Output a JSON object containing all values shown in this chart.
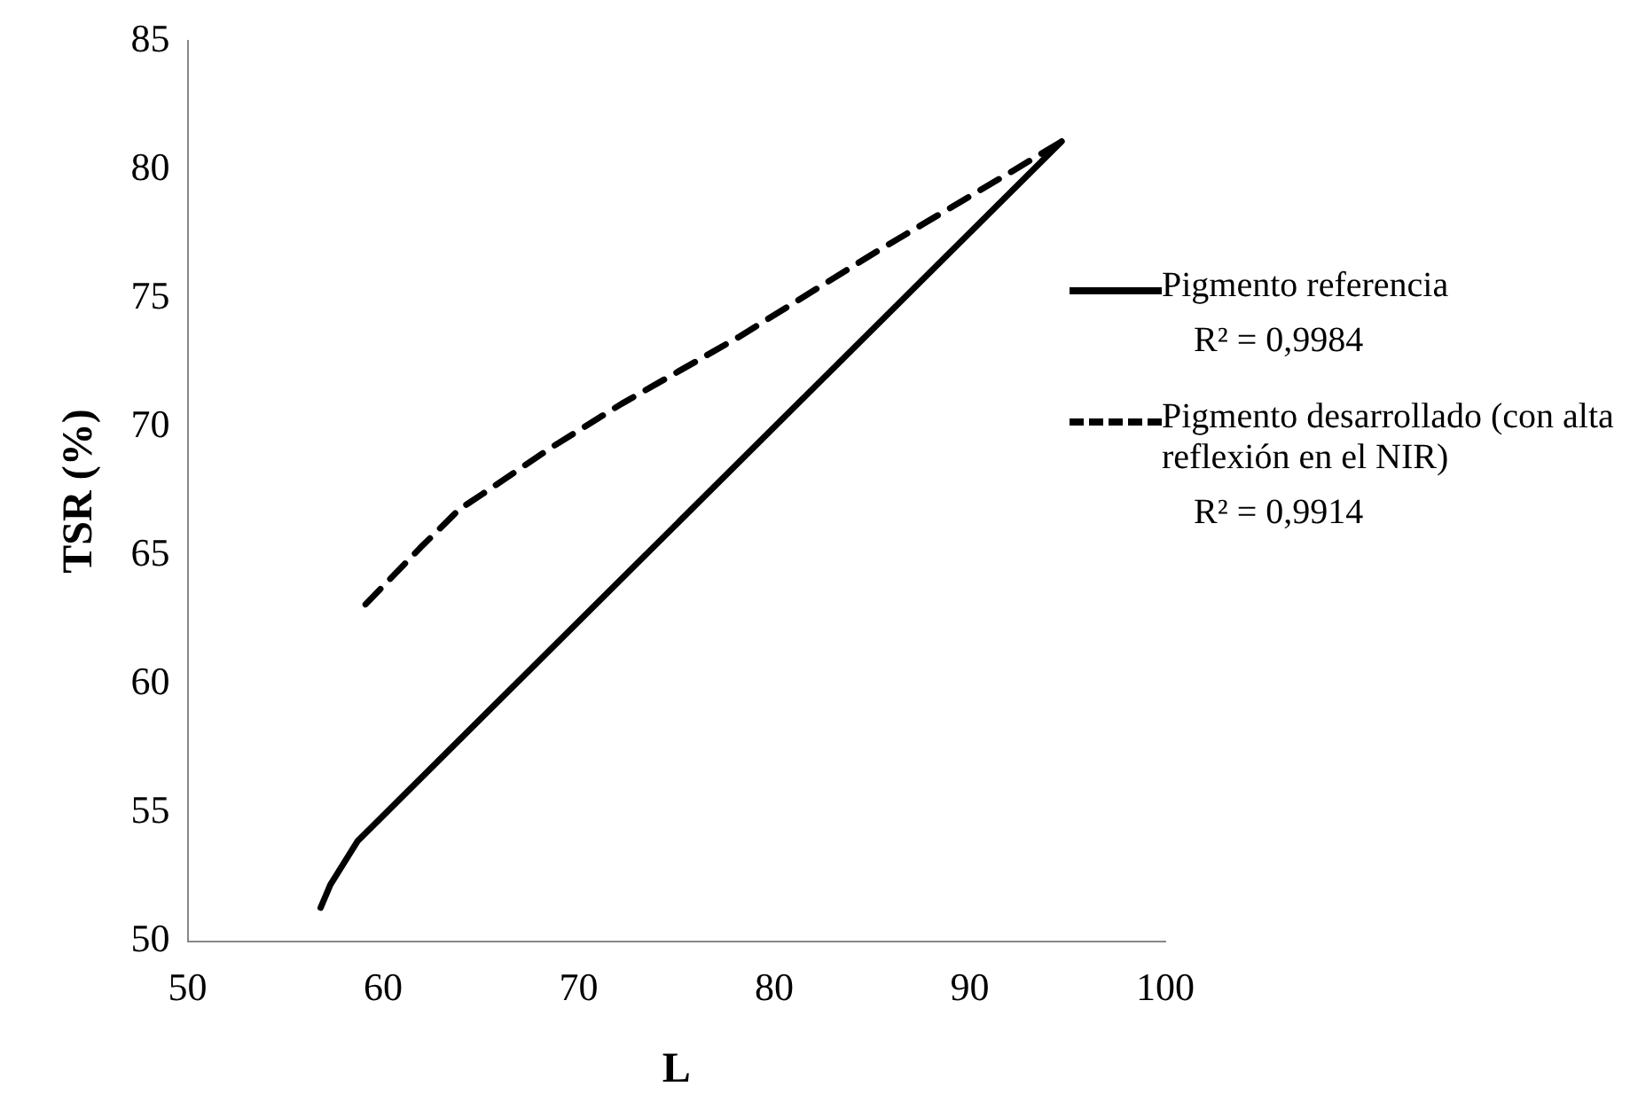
{
  "chart_data": {
    "type": "line",
    "xlabel": "L",
    "ylabel": "TSR (%)",
    "xlim": [
      50,
      100
    ],
    "xticks": [
      50,
      60,
      70,
      80,
      90,
      100
    ],
    "ylim": [
      50,
      85
    ],
    "yticks": [
      50,
      55,
      60,
      65,
      70,
      75,
      80,
      85
    ],
    "grid": false,
    "legend": "right",
    "marker": "none",
    "series": [
      {
        "name": "Pigmento referencia",
        "color": "#000000",
        "line_style": "solid",
        "x": [
          56.8,
          57.3,
          58.7,
          94.7
        ],
        "values": [
          51.3,
          52.2,
          53.9,
          81.1
        ]
      },
      {
        "name": "Pigmento desarrollado (con alta reflexión en el NIR)",
        "color": "#000000",
        "line_style": "dashed",
        "x": [
          59.1,
          61.9,
          63.9,
          65.1,
          68.6,
          72.2,
          78.2,
          85.2,
          92.3,
          94.7
        ],
        "values": [
          63.1,
          65.3,
          66.8,
          67.4,
          69.2,
          70.9,
          73.5,
          76.8,
          80.0,
          81.1
        ]
      }
    ],
    "annotations": [
      "R² = 0,9984",
      "R² = 0,9914"
    ]
  }
}
